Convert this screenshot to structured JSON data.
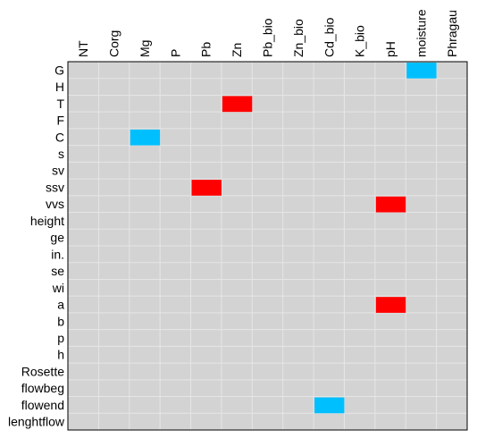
{
  "chart_data": {
    "type": "heatmap",
    "columns": [
      "NT",
      "Corg",
      "Mg",
      "P",
      "Pb",
      "Zn",
      "Pb_bio",
      "Zn_bio",
      "Cd_bio",
      "K_bio",
      "pH",
      "moisture",
      "Phragau"
    ],
    "rows": [
      "G",
      "H",
      "T",
      "F",
      "C",
      "s",
      "sv",
      "ssv",
      "vvs",
      "height",
      "ge",
      "in.",
      "se",
      "wi",
      "a",
      "b",
      "p",
      "h",
      "Rosette",
      "flowbeg",
      "flowend",
      "lenghtflow"
    ],
    "cells": [
      {
        "row": "G",
        "column": "moisture",
        "value": -1
      },
      {
        "row": "T",
        "column": "Zn",
        "value": 1
      },
      {
        "row": "C",
        "column": "Mg",
        "value": -1
      },
      {
        "row": "ssv",
        "column": "Pb",
        "value": 1
      },
      {
        "row": "vvs",
        "column": "pH",
        "value": 1
      },
      {
        "row": "a",
        "column": "pH",
        "value": 1
      },
      {
        "row": "flowend",
        "column": "Cd_bio",
        "value": -1
      }
    ],
    "colors": {
      "background": "#d3d3d3",
      "grid": "#e6e6e6",
      "positive": "#ff0000",
      "negative": "#00bfff",
      "border": "#000000"
    },
    "grid": true
  }
}
